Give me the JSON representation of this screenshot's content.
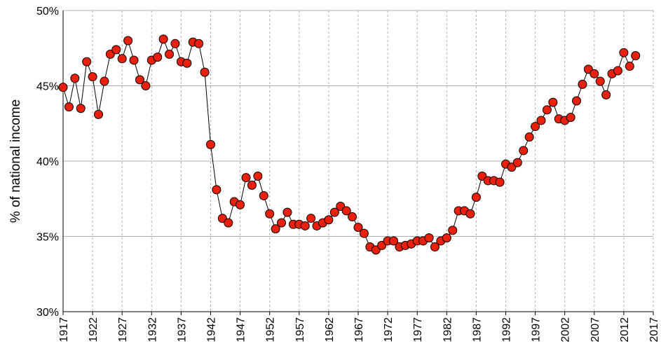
{
  "chart_data": {
    "type": "line",
    "y_label": "% of national income",
    "x": [
      1917,
      1918,
      1919,
      1920,
      1921,
      1922,
      1923,
      1924,
      1925,
      1926,
      1927,
      1928,
      1929,
      1930,
      1931,
      1932,
      1933,
      1934,
      1935,
      1936,
      1937,
      1938,
      1939,
      1940,
      1941,
      1942,
      1943,
      1944,
      1945,
      1946,
      1947,
      1948,
      1949,
      1950,
      1951,
      1952,
      1953,
      1954,
      1955,
      1956,
      1957,
      1958,
      1959,
      1960,
      1961,
      1962,
      1963,
      1964,
      1965,
      1966,
      1967,
      1968,
      1969,
      1970,
      1971,
      1972,
      1973,
      1974,
      1975,
      1976,
      1977,
      1978,
      1979,
      1980,
      1981,
      1982,
      1983,
      1984,
      1985,
      1986,
      1987,
      1988,
      1989,
      1990,
      1991,
      1992,
      1993,
      1994,
      1995,
      1996,
      1997,
      1998,
      1999,
      2000,
      2001,
      2002,
      2003,
      2004,
      2005,
      2006,
      2007,
      2008,
      2009,
      2010,
      2011,
      2012,
      2013,
      2014
    ],
    "values": [
      44.9,
      43.6,
      45.5,
      43.5,
      46.6,
      45.6,
      43.1,
      45.3,
      47.1,
      47.4,
      46.8,
      48.0,
      46.7,
      45.4,
      45.0,
      46.7,
      46.9,
      48.1,
      47.1,
      47.8,
      46.6,
      46.5,
      47.9,
      47.8,
      45.9,
      41.1,
      38.1,
      36.2,
      35.9,
      37.3,
      37.1,
      38.9,
      38.4,
      39.0,
      37.7,
      36.5,
      35.5,
      35.9,
      36.6,
      35.8,
      35.8,
      35.7,
      36.2,
      35.7,
      35.9,
      36.1,
      36.6,
      37.0,
      36.7,
      36.3,
      35.6,
      35.2,
      34.3,
      34.1,
      34.4,
      34.7,
      34.7,
      34.3,
      34.4,
      34.5,
      34.7,
      34.7,
      34.9,
      34.3,
      34.7,
      34.9,
      35.4,
      36.7,
      36.7,
      36.5,
      37.6,
      39.0,
      38.7,
      38.7,
      38.6,
      39.8,
      39.6,
      39.9,
      40.7,
      41.6,
      42.3,
      42.7,
      43.4,
      43.9,
      42.8,
      42.7,
      42.9,
      44.0,
      45.1,
      46.1,
      45.8,
      45.3,
      44.4,
      45.8,
      46.0,
      47.2,
      46.3,
      47.0
    ],
    "color": "#e8200c",
    "xlim": [
      1917,
      2017
    ],
    "xticks": [
      1917,
      1922,
      1927,
      1932,
      1937,
      1942,
      1947,
      1952,
      1957,
      1962,
      1967,
      1972,
      1977,
      1982,
      1987,
      1992,
      1997,
      2002,
      2007,
      2012,
      2017
    ],
    "ylim": [
      30,
      50
    ],
    "yticks": [
      {
        "value": 30,
        "label": "30%"
      },
      {
        "value": 35,
        "label": "35%"
      },
      {
        "value": 40,
        "label": "40%"
      },
      {
        "value": 45,
        "label": "45%"
      },
      {
        "value": 50,
        "label": "50%"
      }
    ],
    "grid": true
  }
}
